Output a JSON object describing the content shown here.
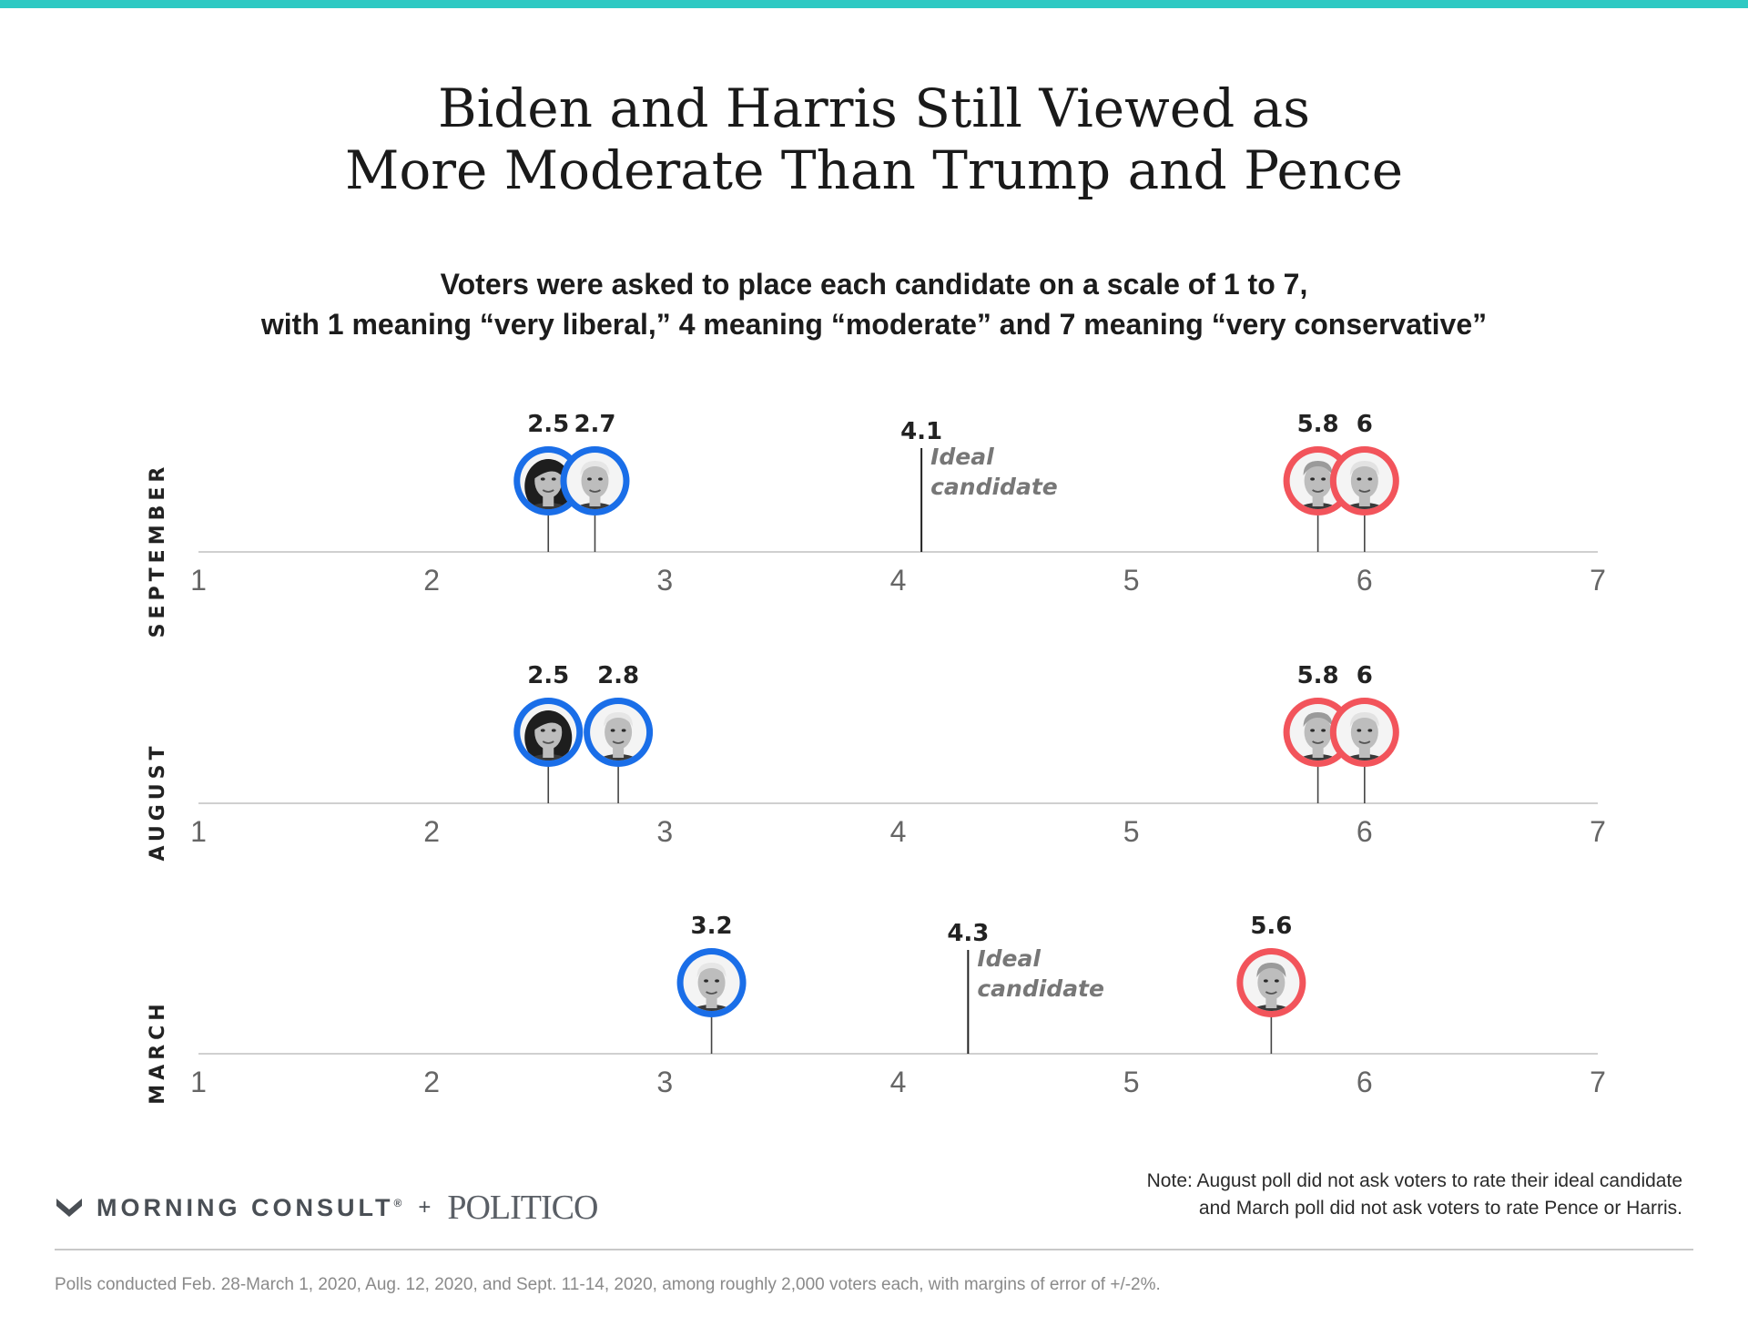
{
  "header": {
    "title_line1": "Biden and Harris Still Viewed as",
    "title_line2": "More Moderate Than Trump and Pence",
    "subtitle_line1": "Voters were asked to place each candidate on a scale of 1 to 7,",
    "subtitle_line2": "with 1 meaning “very liberal,” 4 meaning “moderate” and 7 meaning “very conservative”"
  },
  "colors": {
    "accent_bar": "#2ec9c3",
    "democrat": "#1a6ee8",
    "republican": "#f2545b",
    "axis": "#d0d0d0",
    "tick_label": "#666666"
  },
  "chart_data": {
    "type": "scatter",
    "scale": {
      "min": 1,
      "max": 7,
      "ticks": [
        "1",
        "2",
        "3",
        "4",
        "5",
        "6",
        "7"
      ]
    },
    "ideal_label_line1": "Ideal",
    "ideal_label_line2": "candidate",
    "panels": [
      {
        "label": "SEPTEMBER",
        "points": [
          {
            "name": "Harris",
            "value": 2.5,
            "label": "2.5",
            "party": "democrat",
            "icon": "harris-portrait-icon"
          },
          {
            "name": "Biden",
            "value": 2.7,
            "label": "2.7",
            "party": "democrat",
            "icon": "biden-portrait-icon"
          },
          {
            "name": "Trump",
            "value": 5.8,
            "label": "5.8",
            "party": "republican",
            "icon": "trump-portrait-icon"
          },
          {
            "name": "Pence",
            "value": 6,
            "label": "6",
            "party": "republican",
            "icon": "pence-portrait-icon"
          }
        ],
        "ideal": {
          "value": 4.1,
          "label": "4.1"
        }
      },
      {
        "label": "AUGUST",
        "points": [
          {
            "name": "Harris",
            "value": 2.5,
            "label": "2.5",
            "party": "democrat",
            "icon": "harris-portrait-icon"
          },
          {
            "name": "Biden",
            "value": 2.8,
            "label": "2.8",
            "party": "democrat",
            "icon": "biden-portrait-icon"
          },
          {
            "name": "Trump",
            "value": 5.8,
            "label": "5.8",
            "party": "republican",
            "icon": "trump-portrait-icon"
          },
          {
            "name": "Pence",
            "value": 6,
            "label": "6",
            "party": "republican",
            "icon": "pence-portrait-icon"
          }
        ],
        "ideal": null
      },
      {
        "label": "MARCH",
        "points": [
          {
            "name": "Biden",
            "value": 3.2,
            "label": "3.2",
            "party": "democrat",
            "icon": "biden-portrait-icon"
          },
          {
            "name": "Trump",
            "value": 5.6,
            "label": "5.6",
            "party": "republican",
            "icon": "trump-portrait-icon"
          }
        ],
        "ideal": {
          "value": 4.3,
          "label": "4.3"
        }
      }
    ]
  },
  "footer": {
    "brand_morning_consult": "MORNING CONSULT",
    "brand_registered": "®",
    "brand_plus": "+",
    "brand_politico": "POLITICO",
    "note_line1": "Note: August poll did not ask voters to rate their ideal candidate",
    "note_line2": "and March poll did not ask voters to rate Pence or Harris.",
    "source": "Polls conducted Feb. 28-March 1, 2020, Aug. 12, 2020, and Sept. 11-14, 2020, among roughly 2,000 voters each, with margins of error of +/-2%."
  }
}
